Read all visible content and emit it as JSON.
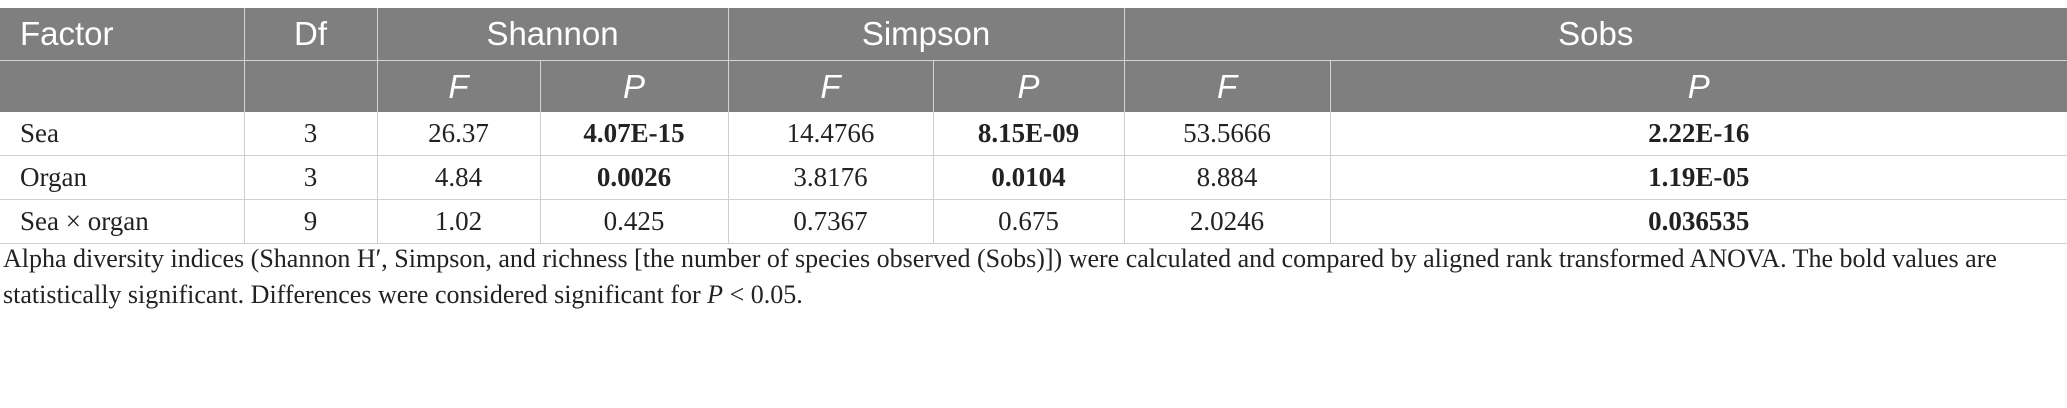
{
  "header": {
    "factor": "Factor",
    "df": "Df",
    "shannon": "Shannon",
    "simpson": "Simpson",
    "sobs": "Sobs",
    "f": "F",
    "p": "P"
  },
  "rows": [
    {
      "factor": "Sea",
      "df": "3",
      "shannon_f": "26.37",
      "shannon_p": "4.07E-15",
      "simpson_f": "14.4766",
      "simpson_p": "8.15E-09",
      "sobs_f": "53.5666",
      "sobs_p": "2.22E-16"
    },
    {
      "factor": "Organ",
      "df": "3",
      "shannon_f": "4.84",
      "shannon_p": "0.0026",
      "simpson_f": "3.8176",
      "simpson_p": "0.0104",
      "sobs_f": "8.884",
      "sobs_p": "1.19E-05"
    },
    {
      "factor": "Sea × organ",
      "df": "9",
      "shannon_f": "1.02",
      "shannon_p": "0.425",
      "simpson_f": "0.7367",
      "simpson_p": "0.675",
      "sobs_f": "2.0246",
      "sobs_p": "0.036535"
    }
  ],
  "footnote": {
    "text": "Alpha diversity indices (Shannon H′, Simpson, and richness [the number of species observed (Sobs)]) were calculated and compared by aligned rank transformed ANOVA. The bold values are statistically significant. Differences were considered significant for ",
    "p_symbol": "P",
    "tail": " < 0.05."
  }
}
